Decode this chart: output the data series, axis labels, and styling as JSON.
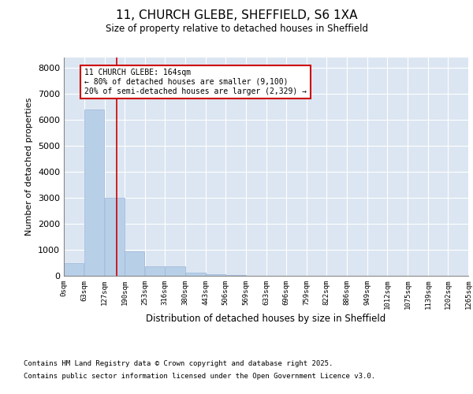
{
  "title_line1": "11, CHURCH GLEBE, SHEFFIELD, S6 1XA",
  "title_line2": "Size of property relative to detached houses in Sheffield",
  "xlabel": "Distribution of detached houses by size in Sheffield",
  "ylabel": "Number of detached properties",
  "bar_color": "#b8cfe8",
  "bar_edge_color": "#9ab5d8",
  "background_color": "#dce6f2",
  "annotation_box_color": "#cc0000",
  "property_line_color": "#cc0000",
  "property_sqm": 164,
  "property_label": "11 CHURCH GLEBE: 164sqm",
  "annotation_line1": "← 80% of detached houses are smaller (9,100)",
  "annotation_line2": "20% of semi-detached houses are larger (2,329) →",
  "bin_edges": [
    0,
    63,
    127,
    190,
    253,
    316,
    380,
    443,
    506,
    569,
    633,
    696,
    759,
    822,
    886,
    949,
    1012,
    1075,
    1139,
    1202,
    1265
  ],
  "bin_labels": [
    "0sqm",
    "63sqm",
    "127sqm",
    "190sqm",
    "253sqm",
    "316sqm",
    "380sqm",
    "443sqm",
    "506sqm",
    "569sqm",
    "633sqm",
    "696sqm",
    "759sqm",
    "822sqm",
    "886sqm",
    "949sqm",
    "1012sqm",
    "1075sqm",
    "1139sqm",
    "1202sqm",
    "1265sqm"
  ],
  "counts": [
    490,
    6400,
    3000,
    950,
    370,
    370,
    120,
    55,
    25,
    0,
    0,
    0,
    0,
    0,
    0,
    0,
    0,
    0,
    0,
    0
  ],
  "ylim": [
    0,
    8400
  ],
  "yticks": [
    0,
    1000,
    2000,
    3000,
    4000,
    5000,
    6000,
    7000,
    8000
  ],
  "footer_line1": "Contains HM Land Registry data © Crown copyright and database right 2025.",
  "footer_line2": "Contains public sector information licensed under the Open Government Licence v3.0."
}
